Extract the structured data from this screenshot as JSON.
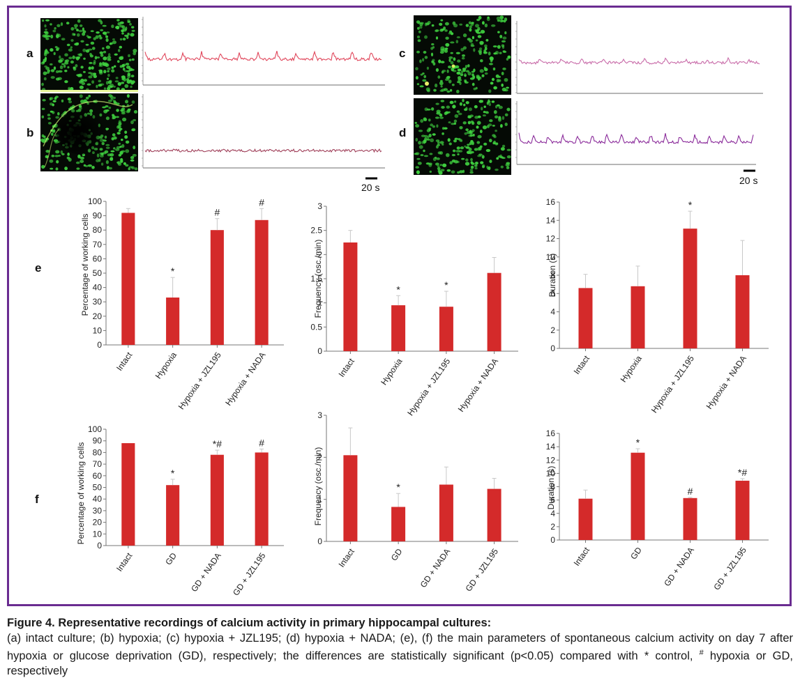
{
  "panels": {
    "a": "a",
    "b": "b",
    "c": "c",
    "d": "d",
    "e": "e",
    "f": "f"
  },
  "scale_bars": [
    "20 s",
    "20 s"
  ],
  "colors": {
    "bar": "#d42a2a",
    "frame": "#6a2c91",
    "trace_a": "#e0455a",
    "trace_b": "#a0405a",
    "trace_c": "#c86aa8",
    "trace_d": "#8a2a9a",
    "cells": "#3fcf3f"
  },
  "caption": {
    "title": "Figure 4. Representative recordings of calcium activity in primary hippocampal cultures:",
    "body": "(a) intact culture; (b) hypoxia; (c) hypoxia + JZL195; (d) hypoxia + NADA; (e), (f) the main parameters of spontaneous calcium activity on day 7 after hypoxia or glucose deprivation (GD), respectively; the differences are statistically significant (p<0.05) compared with * control, # hypoxia or GD, respectively",
    "hash_superscript": "#",
    "hash_tail": " hypoxia or GD, respectively"
  },
  "chart_data": [
    {
      "type": "bar",
      "panel": "e",
      "categories": [
        "Intact",
        "Hypoxia",
        "Hypoxia + JZL195",
        "Hypoxia + NADA"
      ],
      "values": [
        92,
        33,
        80,
        87
      ],
      "errors": [
        3,
        14,
        8,
        8
      ],
      "significance": [
        "",
        "*",
        "#",
        "#"
      ],
      "ylabel": "Percentage of working cells",
      "ylim": [
        0,
        100
      ],
      "yticks": [
        0,
        10,
        20,
        30,
        40,
        50,
        60,
        70,
        80,
        90,
        100
      ]
    },
    {
      "type": "bar",
      "panel": "e",
      "categories": [
        "Intact",
        "Hypoxia",
        "Hypoxia + JZL195",
        "Hypoxia + NADA"
      ],
      "values": [
        2.25,
        0.95,
        0.92,
        1.62
      ],
      "errors": [
        0.25,
        0.2,
        0.32,
        0.32
      ],
      "significance": [
        "",
        "*",
        "*",
        ""
      ],
      "ylabel": "Frequency (osc./min)",
      "ylim": [
        0,
        3
      ],
      "yticks": [
        0,
        0.5,
        1,
        1.5,
        2,
        2.5,
        3
      ]
    },
    {
      "type": "bar",
      "panel": "e",
      "categories": [
        "Intact",
        "Hypoxia",
        "Hypoxia + JZL195",
        "Hypoxia + NADA"
      ],
      "values": [
        6.6,
        6.8,
        13.1,
        8.0
      ],
      "errors": [
        1.5,
        2.2,
        1.9,
        3.8
      ],
      "significance": [
        "",
        "",
        "*",
        ""
      ],
      "ylabel": "Duration (s)",
      "ylim": [
        0,
        16
      ],
      "yticks": [
        0,
        2,
        4,
        6,
        8,
        10,
        12,
        14,
        16
      ]
    },
    {
      "type": "bar",
      "panel": "f",
      "categories": [
        "Intact",
        "GD",
        "GD + NADA",
        "GD + JZL195"
      ],
      "values": [
        88,
        52,
        78,
        80
      ],
      "errors": [
        0,
        5,
        4,
        3
      ],
      "significance": [
        "",
        "*",
        "*#",
        "#"
      ],
      "ylabel": "Percentage of working cells",
      "ylim": [
        0,
        100
      ],
      "yticks": [
        0,
        10,
        20,
        30,
        40,
        50,
        60,
        70,
        80,
        90,
        100
      ]
    },
    {
      "type": "bar",
      "panel": "f",
      "categories": [
        "Intact",
        "GD",
        "GD + NADA",
        "GD + JZL195"
      ],
      "values": [
        2.05,
        0.82,
        1.35,
        1.25
      ],
      "errors": [
        0.65,
        0.32,
        0.42,
        0.25
      ],
      "significance": [
        "",
        "*",
        "",
        ""
      ],
      "ylabel": "Frequency (osc./min)",
      "ylim": [
        0,
        3
      ],
      "yticks": [
        0,
        1,
        2,
        3
      ]
    },
    {
      "type": "bar",
      "panel": "f",
      "categories": [
        "Intact",
        "GD",
        "GD + NADA",
        "GD + JZL195"
      ],
      "values": [
        6.2,
        13.1,
        6.3,
        8.9
      ],
      "errors": [
        1.3,
        0.6,
        0.1,
        0.3
      ],
      "significance": [
        "",
        "*",
        "#",
        "*#"
      ],
      "ylabel": "Duration (s)",
      "ylim": [
        0,
        16
      ],
      "yticks": [
        0,
        2,
        4,
        6,
        8,
        10,
        12,
        14,
        16
      ]
    }
  ]
}
